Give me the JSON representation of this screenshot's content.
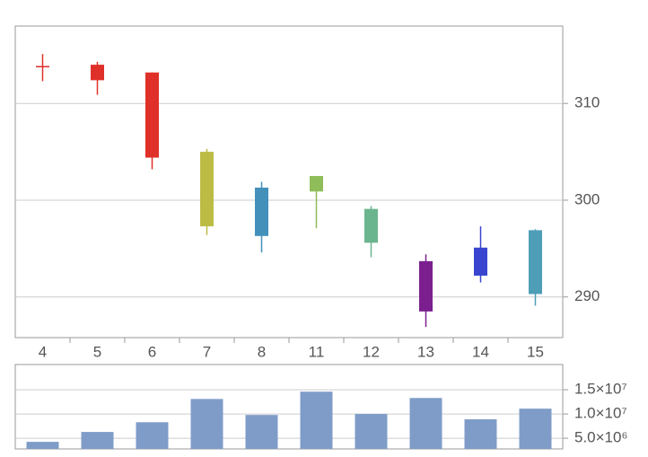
{
  "chart_data": [
    {
      "type": "candlestick",
      "categories": [
        "4",
        "5",
        "6",
        "7",
        "8",
        "11",
        "12",
        "13",
        "14",
        "15"
      ],
      "open": [
        313.8,
        314.0,
        313.2,
        305.0,
        301.3,
        302.5,
        299.1,
        293.7,
        295.1,
        296.9
      ],
      "high": [
        315.1,
        314.3,
        313.2,
        305.3,
        301.9,
        302.5,
        299.4,
        294.4,
        297.3,
        297.0
      ],
      "low": [
        312.3,
        310.9,
        303.2,
        296.4,
        294.6,
        297.1,
        294.1,
        286.9,
        291.5,
        289.1
      ],
      "close": [
        313.8,
        312.4,
        304.4,
        297.3,
        296.3,
        300.9,
        295.6,
        288.5,
        292.2,
        290.3
      ],
      "colors": [
        "#e0302a",
        "#e0302a",
        "#e0302a",
        "#bcbc45",
        "#4390bb",
        "#8fbd5a",
        "#6bb58e",
        "#7b1f8f",
        "#3a45cf",
        "#4e9eb8"
      ],
      "ylim": [
        285.8,
        318
      ],
      "yticks": [
        290,
        300,
        310
      ],
      "grid": true
    },
    {
      "type": "bar",
      "values": [
        4260000,
        6300000,
        8300000,
        13100000,
        9800000,
        14600000,
        10000000,
        13300000,
        8900000,
        11100000
      ],
      "color": "#7f9cc8",
      "ylim": [
        2800000,
        20200000
      ],
      "yticks": [
        {
          "value": 5000000,
          "label": "5.0×10⁶"
        },
        {
          "value": 10000000,
          "label": "1.0×10⁷"
        },
        {
          "value": 15000000,
          "label": "1.5×10⁷"
        }
      ],
      "grid": true
    }
  ]
}
